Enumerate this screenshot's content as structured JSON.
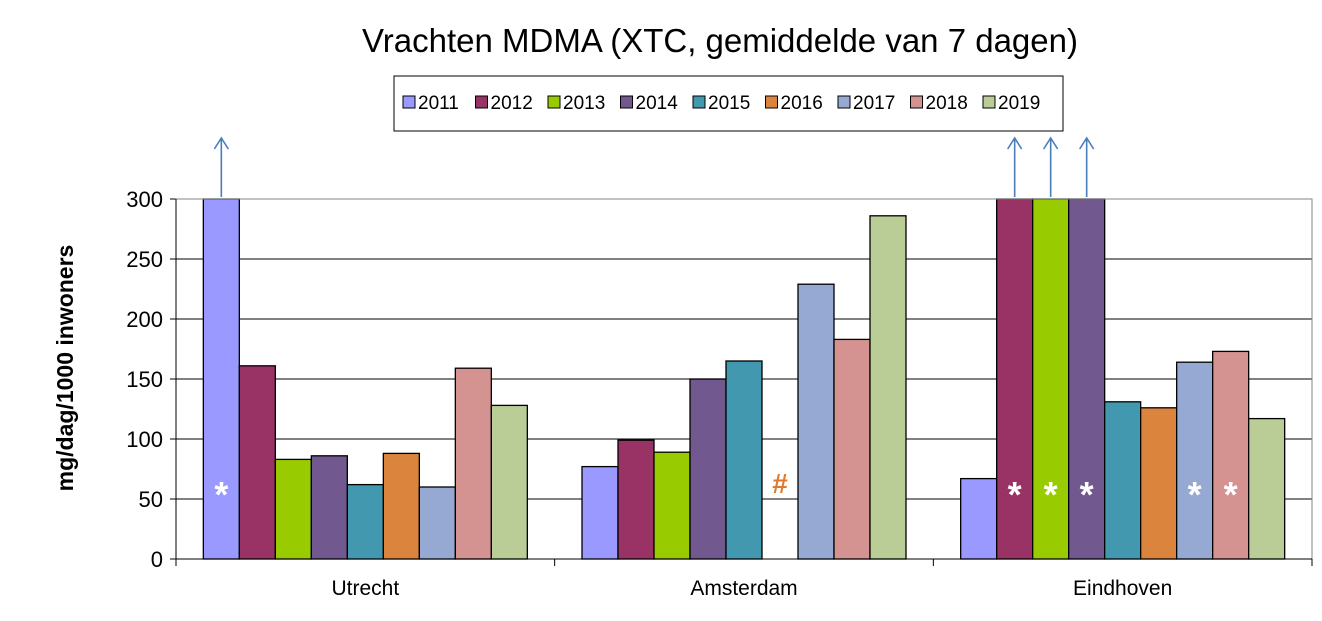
{
  "chart_data": {
    "type": "bar",
    "title": "Vrachten MDMA (XTC, gemiddelde van 7 dagen)",
    "ylabel": "mg/dag/1000 inwoners",
    "xlabel": "",
    "ylim": [
      0,
      300
    ],
    "yticks": [
      0,
      50,
      100,
      150,
      200,
      250,
      300
    ],
    "ytick_labels": [
      "0",
      "50",
      "100",
      "150",
      "200",
      "250",
      "300"
    ],
    "grid": true,
    "legend_position": "top",
    "categories": [
      "Utrecht",
      "Amsterdam",
      "Eindhoven"
    ],
    "series": [
      {
        "name": "2011",
        "color": "#9999ff",
        "values": [
          300,
          77,
          67
        ],
        "exceeds_axis": [
          true,
          false,
          false
        ],
        "markers": [
          "*",
          "",
          ""
        ]
      },
      {
        "name": "2012",
        "color": "#993366",
        "values": [
          161,
          99,
          300
        ],
        "exceeds_axis": [
          false,
          false,
          true
        ],
        "markers": [
          "",
          "",
          "*"
        ]
      },
      {
        "name": "2013",
        "color": "#99cc00",
        "values": [
          83,
          89,
          300
        ],
        "exceeds_axis": [
          false,
          false,
          true
        ],
        "markers": [
          "",
          "",
          "*"
        ]
      },
      {
        "name": "2014",
        "color": "#71588f",
        "values": [
          86,
          150,
          300
        ],
        "exceeds_axis": [
          false,
          false,
          true
        ],
        "markers": [
          "",
          "",
          "*"
        ]
      },
      {
        "name": "2015",
        "color": "#4198af",
        "values": [
          62,
          165,
          131
        ],
        "exceeds_axis": [
          false,
          false,
          false
        ],
        "markers": [
          "",
          "",
          ""
        ]
      },
      {
        "name": "2016",
        "color": "#db843d",
        "values": [
          88,
          null,
          126
        ],
        "exceeds_axis": [
          false,
          false,
          false
        ],
        "markers": [
          "",
          "#",
          ""
        ]
      },
      {
        "name": "2017",
        "color": "#95a9d3",
        "values": [
          60,
          229,
          164
        ],
        "exceeds_axis": [
          false,
          false,
          false
        ],
        "markers": [
          "",
          "",
          "*"
        ]
      },
      {
        "name": "2018",
        "color": "#d49390",
        "values": [
          159,
          183,
          173
        ],
        "exceeds_axis": [
          false,
          false,
          false
        ],
        "markers": [
          "",
          "",
          "*"
        ]
      },
      {
        "name": "2019",
        "color": "#bacd96",
        "values": [
          128,
          286,
          117
        ],
        "exceeds_axis": [
          false,
          false,
          false
        ],
        "markers": [
          "",
          "",
          ""
        ]
      }
    ]
  }
}
